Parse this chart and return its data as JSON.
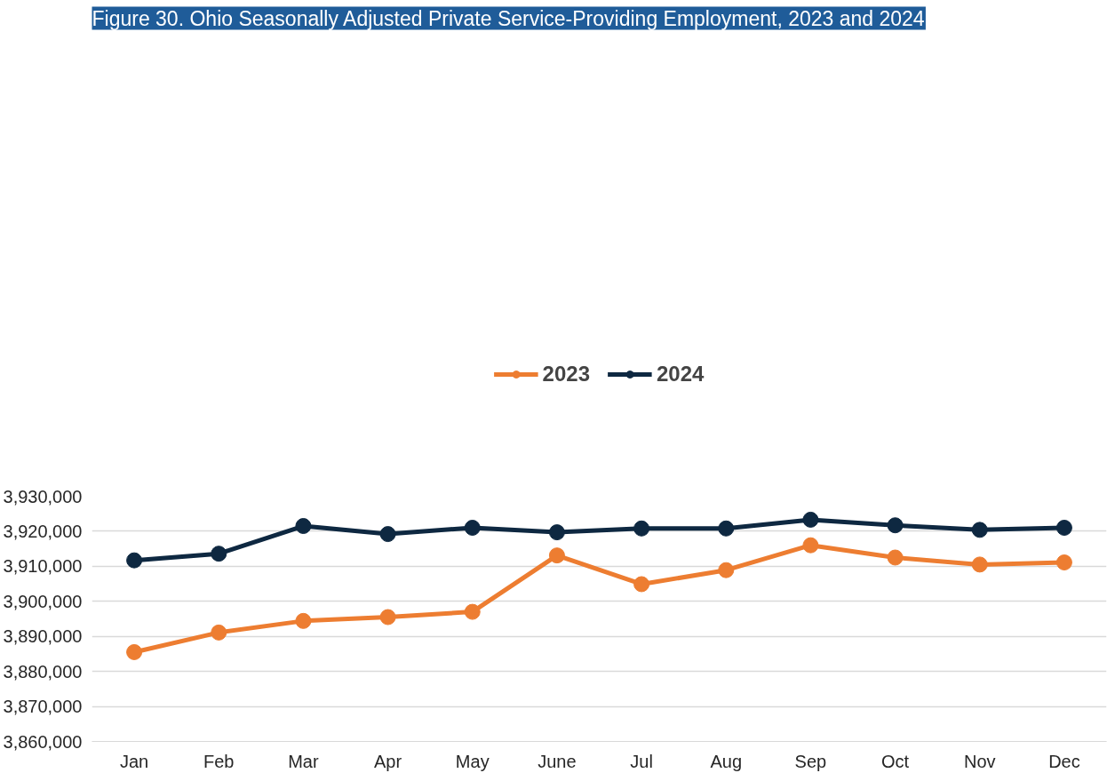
{
  "chart_data": {
    "type": "line",
    "title": "Figure 30. Ohio Seasonally Adjusted Private Service-Providing Employment, 2023 and 2024",
    "categories": [
      "Jan",
      "Feb",
      "Mar",
      "Apr",
      "May",
      "June",
      "Jul",
      "Aug",
      "Sep",
      "Oct",
      "Nov",
      "Dec"
    ],
    "series": [
      {
        "name": "2023",
        "color": "#ed7d31",
        "values": [
          3885500,
          3891100,
          3894400,
          3895500,
          3897000,
          3913100,
          3904900,
          3908900,
          3916000,
          3912500,
          3910500,
          3911100
        ]
      },
      {
        "name": "2024",
        "color": "#0e2841",
        "values": [
          3911700,
          3913600,
          3921500,
          3919200,
          3921000,
          3919700,
          3920800,
          3920800,
          3923300,
          3921700,
          3920400,
          3921000
        ]
      }
    ],
    "ylim": [
      3860000,
      3930000
    ],
    "yticks": [
      {
        "value": 3860000,
        "label": "3,860,000"
      },
      {
        "value": 3870000,
        "label": "3,870,000"
      },
      {
        "value": 3880000,
        "label": "3,880,000"
      },
      {
        "value": 3890000,
        "label": "3,890,000"
      },
      {
        "value": 3900000,
        "label": "3,900,000"
      },
      {
        "value": 3910000,
        "label": "3,910,000"
      },
      {
        "value": 3920000,
        "label": "3,920,000"
      },
      {
        "value": 3930000,
        "label": "3,930,000"
      }
    ],
    "grid": "y",
    "legend": "top",
    "marker": "circle",
    "line_style": "solid"
  }
}
